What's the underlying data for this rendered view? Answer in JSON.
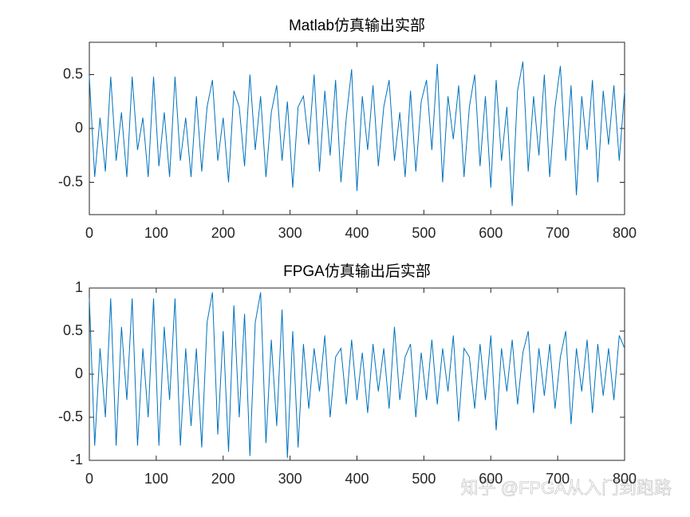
{
  "chart_data": [
    {
      "type": "line",
      "title": "Matlab仿真输出实部",
      "xlim": [
        0,
        800
      ],
      "xticks": [
        0,
        100,
        200,
        300,
        400,
        500,
        600,
        700,
        800
      ],
      "ylim": [
        -0.8,
        0.8
      ],
      "yticks": [
        -0.5,
        0,
        0.5
      ],
      "x": [
        0,
        8,
        16,
        24,
        32,
        40,
        48,
        56,
        64,
        72,
        80,
        88,
        96,
        104,
        112,
        120,
        128,
        136,
        144,
        152,
        160,
        168,
        176,
        184,
        192,
        200,
        208,
        216,
        224,
        232,
        240,
        248,
        256,
        264,
        272,
        280,
        288,
        296,
        304,
        312,
        320,
        328,
        336,
        344,
        352,
        360,
        368,
        376,
        384,
        392,
        400,
        408,
        416,
        424,
        432,
        440,
        448,
        456,
        464,
        472,
        480,
        488,
        496,
        504,
        512,
        520,
        528,
        536,
        544,
        552,
        560,
        568,
        576,
        584,
        592,
        600,
        608,
        616,
        624,
        632,
        640,
        648,
        656,
        664,
        672,
        680,
        688,
        696,
        704,
        712,
        720,
        728,
        736,
        744,
        752,
        760,
        768,
        776,
        784,
        792,
        800
      ],
      "series": [
        {
          "color": "#0072bd",
          "values": [
            0.48,
            -0.45,
            0.1,
            -0.4,
            0.48,
            -0.3,
            0.15,
            -0.45,
            0.48,
            -0.2,
            0.1,
            -0.45,
            0.48,
            -0.35,
            0.15,
            -0.45,
            0.48,
            -0.3,
            0.1,
            -0.45,
            0.3,
            -0.4,
            0.2,
            0.45,
            -0.3,
            0.1,
            -0.5,
            0.35,
            0.2,
            -0.35,
            0.5,
            -0.2,
            0.3,
            -0.45,
            0.15,
            0.4,
            -0.3,
            0.25,
            -0.55,
            0.2,
            0.3,
            -0.15,
            0.5,
            -0.4,
            0.35,
            -0.25,
            0.45,
            -0.5,
            0.1,
            0.55,
            -0.58,
            0.3,
            -0.2,
            0.4,
            -0.35,
            0.2,
            0.45,
            -0.3,
            0.15,
            -0.45,
            0.35,
            -0.4,
            0.25,
            0.45,
            -0.2,
            0.6,
            -0.5,
            0.3,
            -0.1,
            0.4,
            -0.45,
            0.2,
            0.5,
            -0.35,
            0.3,
            -0.55,
            0.45,
            -0.3,
            0.2,
            -0.72,
            0.35,
            0.62,
            -0.4,
            0.3,
            -0.25,
            0.5,
            -0.45,
            0.2,
            0.58,
            -0.3,
            0.4,
            -0.62,
            0.3,
            -0.2,
            0.45,
            -0.5,
            0.35,
            -0.15,
            0.4,
            -0.3,
            0.35
          ]
        }
      ]
    },
    {
      "type": "line",
      "title": "FPGA仿真输出后实部",
      "xlim": [
        0,
        800
      ],
      "xticks": [
        0,
        100,
        200,
        300,
        400,
        500,
        600,
        700,
        800
      ],
      "ylim": [
        -1,
        1
      ],
      "yticks": [
        -1,
        -0.5,
        0,
        0.5,
        1
      ],
      "x": [
        0,
        8,
        16,
        24,
        32,
        40,
        48,
        56,
        64,
        72,
        80,
        88,
        96,
        104,
        112,
        120,
        128,
        136,
        144,
        152,
        160,
        168,
        176,
        184,
        192,
        200,
        208,
        216,
        224,
        232,
        240,
        248,
        256,
        264,
        272,
        280,
        288,
        296,
        304,
        312,
        320,
        328,
        336,
        344,
        352,
        360,
        368,
        376,
        384,
        392,
        400,
        408,
        416,
        424,
        432,
        440,
        448,
        456,
        464,
        472,
        480,
        488,
        496,
        504,
        512,
        520,
        528,
        536,
        544,
        552,
        560,
        568,
        576,
        584,
        592,
        600,
        608,
        616,
        624,
        632,
        640,
        648,
        656,
        664,
        672,
        680,
        688,
        696,
        704,
        712,
        720,
        728,
        736,
        744,
        752,
        760,
        768,
        776,
        784,
        792,
        800
      ],
      "series": [
        {
          "color": "#0072bd",
          "values": [
            0.88,
            -0.83,
            0.3,
            -0.5,
            0.88,
            -0.83,
            0.55,
            -0.3,
            0.88,
            -0.83,
            0.3,
            -0.5,
            0.88,
            -0.83,
            0.55,
            -0.3,
            0.88,
            -0.83,
            0.3,
            -0.6,
            0.3,
            -0.85,
            0.6,
            0.95,
            -0.7,
            0.5,
            -0.9,
            0.8,
            -0.5,
            0.7,
            -0.95,
            0.6,
            0.95,
            -0.8,
            0.4,
            -0.6,
            0.75,
            -0.97,
            0.5,
            -0.85,
            0.35,
            -0.4,
            0.3,
            -0.2,
            0.45,
            -0.5,
            0.2,
            0.3,
            -0.35,
            0.4,
            -0.3,
            0.25,
            -0.45,
            0.35,
            -0.2,
            0.3,
            -0.4,
            0.55,
            -0.3,
            0.2,
            0.35,
            -0.5,
            0.25,
            -0.3,
            0.4,
            -0.35,
            0.3,
            -0.2,
            0.45,
            -0.55,
            0.3,
            0.2,
            -0.4,
            0.35,
            -0.3,
            0.45,
            -0.65,
            0.3,
            -0.2,
            0.4,
            -0.35,
            0.25,
            0.5,
            -0.45,
            0.3,
            -0.25,
            0.35,
            -0.4,
            0.2,
            0.5,
            -0.58,
            0.3,
            -0.2,
            0.4,
            -0.45,
            0.35,
            -0.25,
            0.3,
            -0.3,
            0.45,
            0.3
          ]
        }
      ]
    }
  ],
  "watermark": "知乎 @FPGA从入门到跑路"
}
